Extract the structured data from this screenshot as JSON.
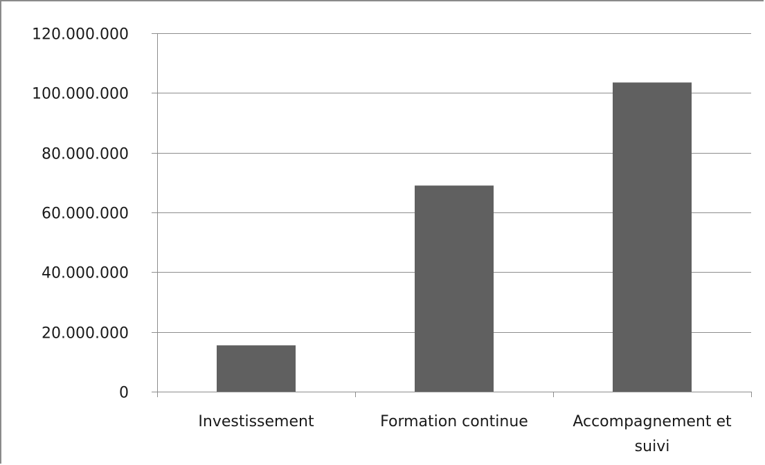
{
  "chart_data": {
    "type": "bar",
    "categories": [
      "Investissement",
      "Formation continue",
      "Accompagnement et suivi"
    ],
    "category_label_lines": [
      [
        "Investissement"
      ],
      [
        "Formation continue"
      ],
      [
        "Accompagnement et",
        "suivi"
      ]
    ],
    "values": [
      15500000,
      69000000,
      103500000
    ],
    "ylim": [
      0,
      120000000
    ],
    "yticks": [
      0,
      20000000,
      40000000,
      60000000,
      80000000,
      100000000,
      120000000
    ],
    "ytick_labels": [
      "0",
      "20.000.000",
      "40.000.000",
      "60.000.000",
      "80.000.000",
      "100.000.000",
      "120.000.000"
    ],
    "grid": true,
    "legend": false,
    "bar_color": "#606060",
    "grid_color": "#8c8c8c",
    "title": "",
    "xlabel": "",
    "ylabel": ""
  }
}
